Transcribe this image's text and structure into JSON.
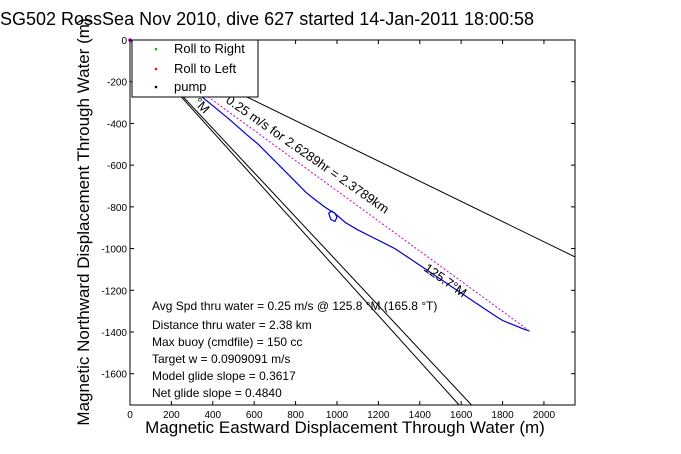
{
  "chart_data": {
    "type": "line",
    "title": "SG502 RossSea Nov 2010, dive 627 started 14-Jan-2011 18:00:58",
    "xlabel": "Magnetic Eastward Displacement Through Water (m)",
    "ylabel": "Magnetic Northward Displacement Through Water (m)",
    "xlim": [
      0,
      2150
    ],
    "ylim": [
      -1750,
      0
    ],
    "grid": false,
    "x_ticks": [
      "0",
      "200",
      "400",
      "600",
      "800",
      "1000",
      "1200",
      "1400",
      "1600",
      "1800",
      "2000"
    ],
    "y_ticks": [
      "0",
      "-200",
      "-400",
      "-600",
      "-800",
      "-1000",
      "-1200",
      "-1400",
      "-1600"
    ],
    "legend": {
      "placement": "top-left",
      "entries": [
        {
          "label": "Roll to Right",
          "color": "#00c000",
          "marker": "dot"
        },
        {
          "label": "Roll to Left",
          "color": "#ff0000",
          "marker": "dot"
        },
        {
          "label": "pump",
          "color": "#000000",
          "marker": "dot"
        }
      ]
    },
    "series": [
      {
        "color": "#0000cc",
        "x": [
          0,
          80,
          160,
          240,
          320,
          400,
          480,
          560,
          620,
          680,
          740,
          800,
          850,
          900,
          940,
          970,
          990,
          1000,
          990,
          970,
          960,
          975,
          1000,
          1040,
          1100,
          1160,
          1220,
          1280,
          1340,
          1400,
          1460,
          1520,
          1580,
          1640,
          1700,
          1760,
          1800,
          1850,
          1900,
          1930
        ],
        "y": [
          0,
          -60,
          -120,
          -185,
          -250,
          -315,
          -380,
          -450,
          -500,
          -560,
          -620,
          -680,
          -730,
          -770,
          -800,
          -820,
          -830,
          -850,
          -870,
          -860,
          -830,
          -820,
          -840,
          -875,
          -910,
          -940,
          -970,
          -1000,
          -1040,
          -1080,
          -1120,
          -1160,
          -1200,
          -1240,
          -1280,
          -1320,
          -1345,
          -1365,
          -1385,
          -1395
        ]
      },
      {
        "color": "#cc00cc",
        "x": [
          0,
          1930
        ],
        "y": [
          0,
          -1395
        ]
      }
    ],
    "reference_lines": [
      {
        "x": [
          0,
          2150
        ],
        "y": [
          0,
          -1040
        ]
      },
      {
        "x": [
          0,
          1650
        ],
        "y": [
          0,
          -1750
        ]
      },
      {
        "x": [
          0,
          1590
        ],
        "y": [
          0,
          -1750
        ]
      }
    ],
    "annotations": [
      {
        "text": "0.25 m/s for 2.6289hr = 2.3789km"
      },
      {
        "text": "125.7°M"
      },
      {
        "text": "°M"
      }
    ],
    "stats": [
      "Avg Spd thru water = 0.25 m/s @ 125.8 °M (165.8 °T)",
      "Distance thru water = 2.38 km",
      "Max buoy (cmdfile) = 150 cc",
      "Target w = 0.0909091 m/s",
      "Model glide slope = 0.3617",
      "Net glide slope = 0.4840"
    ]
  }
}
